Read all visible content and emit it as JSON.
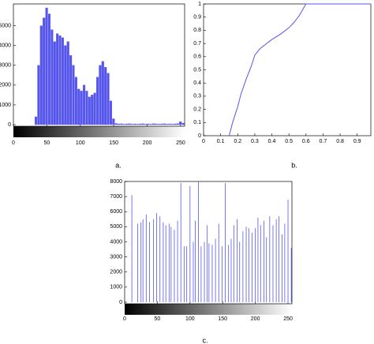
{
  "chart_data": [
    {
      "type": "histogram",
      "caption": "a.",
      "color": "#5555ee",
      "bins": [
        0,
        4,
        8,
        12,
        16,
        20,
        24,
        28,
        32,
        36,
        40,
        44,
        48,
        52,
        56,
        60,
        64,
        68,
        72,
        76,
        80,
        84,
        88,
        92,
        96,
        100,
        104,
        108,
        112,
        116,
        120,
        124,
        128,
        132,
        136,
        140,
        144,
        148,
        152,
        156,
        160,
        164,
        168,
        172,
        176,
        180,
        184,
        188,
        192,
        196,
        200,
        204,
        208,
        212,
        216,
        220,
        224,
        228,
        232,
        236,
        240,
        244,
        248,
        252,
        256
      ],
      "values": [
        0,
        0,
        0,
        0,
        0,
        0,
        0,
        0,
        400,
        3000,
        5000,
        5400,
        5900,
        5600,
        4800,
        4200,
        4600,
        4500,
        4400,
        4000,
        4200,
        3500,
        3000,
        2400,
        1800,
        1700,
        2000,
        1700,
        1400,
        1500,
        1600,
        2400,
        3000,
        3200,
        2900,
        2600,
        1200,
        300,
        60,
        40,
        50,
        30,
        40,
        50,
        30,
        40,
        30,
        40,
        50,
        30,
        40,
        30,
        50,
        40,
        30,
        40,
        50,
        30,
        40,
        30,
        40,
        50,
        150,
        80
      ],
      "xlim": [
        0,
        256
      ],
      "xticks": [
        0,
        50,
        100,
        150,
        200,
        250
      ],
      "ylim": [
        0,
        6100
      ],
      "yticks": [
        0,
        1000,
        2000,
        3000,
        4000,
        5000
      ]
    },
    {
      "type": "line",
      "caption": "b.",
      "color": "#5555ee",
      "x": [
        0.15,
        0.17,
        0.2,
        0.22,
        0.25,
        0.28,
        0.3,
        0.33,
        0.36,
        0.4,
        0.45,
        0.5,
        0.53,
        0.56,
        0.6,
        0.98
      ],
      "values": [
        0,
        0.1,
        0.22,
        0.32,
        0.43,
        0.53,
        0.61,
        0.66,
        0.69,
        0.73,
        0.77,
        0.82,
        0.86,
        0.91,
        1,
        1
      ],
      "xlim": [
        0,
        0.98
      ],
      "xticks": [
        0,
        0.1,
        0.2,
        0.3,
        0.4,
        0.5,
        0.6,
        0.7,
        0.8,
        0.9
      ],
      "ylim": [
        0,
        1
      ],
      "yticks": [
        0,
        0.1,
        0.2,
        0.3,
        0.4,
        0.5,
        0.6,
        0.7,
        0.8,
        0.9,
        1
      ]
    },
    {
      "type": "stem",
      "caption": "c.",
      "color": "#5555ee",
      "x": [
        11,
        20,
        25,
        28,
        33,
        38,
        44,
        49,
        54,
        59,
        63,
        68,
        71,
        76,
        81,
        86,
        91,
        95,
        100,
        105,
        108,
        113,
        117,
        122,
        126,
        129,
        134,
        139,
        144,
        149,
        154,
        159,
        163,
        167,
        172,
        176,
        181,
        186,
        190,
        195,
        200,
        204,
        208,
        213,
        217,
        222,
        227,
        232,
        236,
        241,
        245,
        250,
        255
      ],
      "values": [
        7100,
        5200,
        5300,
        5500,
        5800,
        5300,
        5500,
        5900,
        5700,
        5300,
        5100,
        5200,
        5000,
        4800,
        5400,
        7900,
        3700,
        3700,
        7700,
        4000,
        5400,
        8000,
        3700,
        4000,
        5100,
        3900,
        3800,
        4200,
        5200,
        3700,
        7900,
        3800,
        4200,
        5100,
        5500,
        4000,
        4700,
        5000,
        4900,
        4600,
        4900,
        5600,
        5100,
        5400,
        4300,
        5700,
        5100,
        5500,
        5700,
        4500,
        5200,
        6800,
        3600
      ],
      "xlim": [
        0,
        256
      ],
      "xticks": [
        0,
        50,
        100,
        150,
        200,
        250
      ],
      "ylim": [
        0,
        8000
      ],
      "yticks": [
        0,
        1000,
        2000,
        3000,
        4000,
        5000,
        6000,
        7000,
        8000
      ]
    }
  ]
}
